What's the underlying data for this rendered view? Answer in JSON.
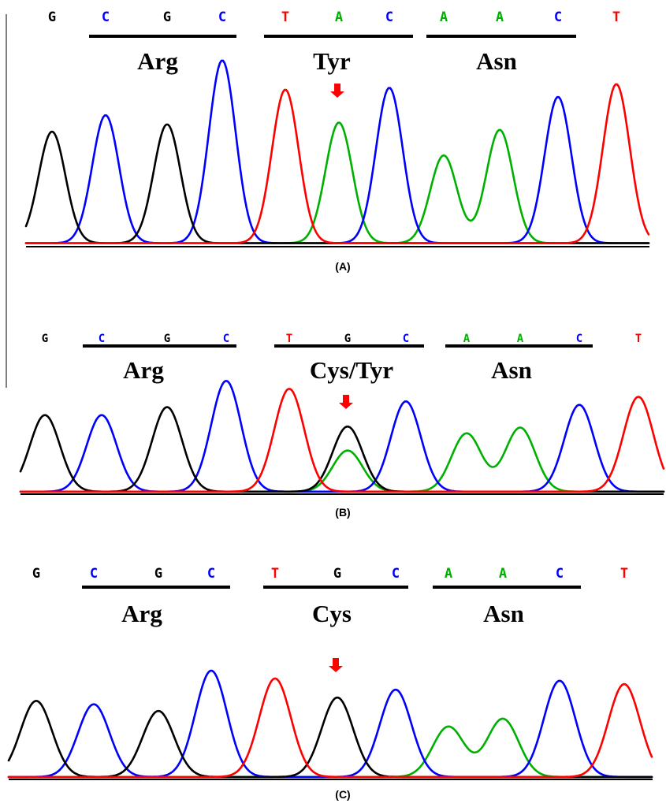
{
  "colors": {
    "A": "#00b000",
    "C": "#0000ff",
    "G": "#000000",
    "T": "#ff0000",
    "arrow": "#ff0000"
  },
  "panels": [
    {
      "label": "(A)",
      "bases": [
        "G",
        "C",
        "G",
        "C",
        "T",
        "A",
        "C",
        "A",
        "A",
        "C",
        "T"
      ],
      "codons": [
        "Arg",
        "Tyr",
        "Asn"
      ],
      "peaks": [
        {
          "base": "G",
          "height": 0.61
        },
        {
          "base": "C",
          "height": 0.7
        },
        {
          "base": "G",
          "height": 0.65
        },
        {
          "base": "C",
          "height": 1.0
        },
        {
          "base": "T",
          "height": 0.84
        },
        {
          "base": "A",
          "height": 0.66
        },
        {
          "base": "C",
          "height": 0.85
        },
        {
          "base": "A",
          "height": 0.48
        },
        {
          "base": "A",
          "height": 0.62
        },
        {
          "base": "C",
          "height": 0.8
        },
        {
          "base": "T",
          "height": 0.87
        }
      ],
      "arrow_at": 5
    },
    {
      "label": "(B)",
      "bases": [
        "G",
        "C",
        "G",
        "C",
        "T",
        "G",
        "C",
        "A",
        "A",
        "C",
        "T"
      ],
      "codons": [
        "Arg",
        "Cys/Tyr",
        "Asn"
      ],
      "peaks": [
        {
          "base": "G",
          "height": 0.67
        },
        {
          "base": "C",
          "height": 0.67
        },
        {
          "base": "G",
          "height": 0.74
        },
        {
          "base": "C",
          "height": 0.97
        },
        {
          "base": "T",
          "height": 0.9
        },
        {
          "base": "G",
          "height": 0.57,
          "secondary": {
            "base": "A",
            "height": 0.36
          }
        },
        {
          "base": "C",
          "height": 0.79
        },
        {
          "base": "A",
          "height": 0.51
        },
        {
          "base": "A",
          "height": 0.56
        },
        {
          "base": "C",
          "height": 0.76
        },
        {
          "base": "T",
          "height": 0.83
        }
      ],
      "arrow_at": 5
    },
    {
      "label": "(C)",
      "bases": [
        "G",
        "C",
        "G",
        "C",
        "T",
        "G",
        "C",
        "A",
        "A",
        "C",
        "T"
      ],
      "codons": [
        "Arg",
        "Cys",
        "Asn"
      ],
      "peaks": [
        {
          "base": "G",
          "height": 0.68
        },
        {
          "base": "C",
          "height": 0.65
        },
        {
          "base": "G",
          "height": 0.59
        },
        {
          "base": "C",
          "height": 0.95
        },
        {
          "base": "T",
          "height": 0.88
        },
        {
          "base": "G",
          "height": 0.71
        },
        {
          "base": "C",
          "height": 0.78
        },
        {
          "base": "A",
          "height": 0.45
        },
        {
          "base": "A",
          "height": 0.52
        },
        {
          "base": "C",
          "height": 0.86
        },
        {
          "base": "T",
          "height": 0.83
        }
      ],
      "arrow_at": 5
    }
  ]
}
